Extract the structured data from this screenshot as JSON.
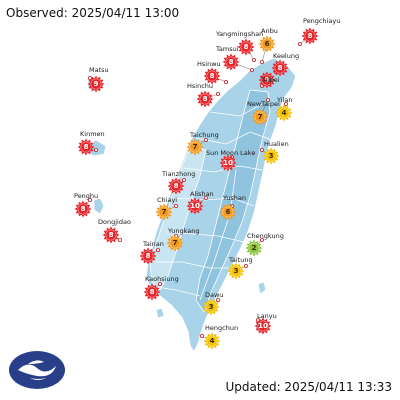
{
  "header": {
    "observed": "Observed: 2025/04/11 13:00"
  },
  "footer": {
    "updated": "Updated: 2025/04/11 13:33"
  },
  "colors": {
    "sea": "#ffffff",
    "land_dark": "#8fc3de",
    "land_mid": "#a9d3e8",
    "land_light": "#c9e5f2",
    "uvi_low": "#8cc63f",
    "uvi_moderate": "#f5c100",
    "uvi_high": "#f39a1f",
    "uvi_very_high": "#e8262b",
    "uvi_extreme": "#c8191e",
    "logo": "#2a3f8a"
  },
  "icons": {
    "station_marker": "sun-icon",
    "logo": "cwa-logo"
  },
  "stations": [
    {
      "name": "Yangmingshan",
      "value": "8",
      "level": "very_high"
    },
    {
      "name": "Anbu",
      "value": "6",
      "level": "high"
    },
    {
      "name": "Pengchiayu",
      "value": "8",
      "level": "very_high"
    },
    {
      "name": "Tamsui",
      "value": "8",
      "level": "very_high"
    },
    {
      "name": "Keelung",
      "value": "8",
      "level": "very_high"
    },
    {
      "name": "Matsu",
      "value": "9",
      "level": "very_high"
    },
    {
      "name": "Hsinwu",
      "value": "8",
      "level": "very_high"
    },
    {
      "name": "Taipei",
      "value": "9",
      "level": "very_high"
    },
    {
      "name": "Hsinchu",
      "value": "8",
      "level": "very_high"
    },
    {
      "name": "NewTaipei",
      "value": "7",
      "level": "high"
    },
    {
      "name": "Yilan",
      "value": "4",
      "level": "moderate"
    },
    {
      "name": "Kinmen",
      "value": "8",
      "level": "very_high"
    },
    {
      "name": "Taichung",
      "value": "7",
      "level": "high"
    },
    {
      "name": "Sun Moon Lake",
      "value": "10",
      "level": "very_high"
    },
    {
      "name": "Hualien",
      "value": "3",
      "level": "moderate"
    },
    {
      "name": "Tianzhong",
      "value": "8",
      "level": "very_high"
    },
    {
      "name": "Penghu",
      "value": "8",
      "level": "very_high"
    },
    {
      "name": "Chiayi",
      "value": "7",
      "level": "high"
    },
    {
      "name": "Alishan",
      "value": "10",
      "level": "very_high"
    },
    {
      "name": "Yushan",
      "value": "6",
      "level": "high"
    },
    {
      "name": "Dongjidao",
      "value": "8",
      "level": "very_high"
    },
    {
      "name": "Yungkang",
      "value": "7",
      "level": "high"
    },
    {
      "name": "Chengkung",
      "value": "2",
      "level": "low"
    },
    {
      "name": "Tainan",
      "value": "8",
      "level": "very_high"
    },
    {
      "name": "Taitung",
      "value": "3",
      "level": "moderate"
    },
    {
      "name": "Kaohsiung",
      "value": "8",
      "level": "very_high"
    },
    {
      "name": "Dawu",
      "value": "3",
      "level": "moderate"
    },
    {
      "name": "Lanyu",
      "value": "10",
      "level": "very_high"
    },
    {
      "name": "Hengchun",
      "value": "4",
      "level": "moderate"
    }
  ]
}
